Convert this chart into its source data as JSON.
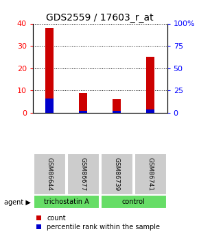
{
  "title": "GDS2559 / 17603_r_at",
  "samples": [
    "GSM86644",
    "GSM86677",
    "GSM86739",
    "GSM86741"
  ],
  "red_values": [
    38,
    9,
    6,
    25
  ],
  "blue_values": [
    6.5,
    0.8,
    0.8,
    1.5
  ],
  "ylim_left": [
    0,
    40
  ],
  "yticks_left": [
    0,
    10,
    20,
    30,
    40
  ],
  "ytick_labels_right": [
    "0",
    "25",
    "50",
    "75",
    "100%"
  ],
  "yticks_right_pos": [
    0,
    10,
    20,
    30,
    40
  ],
  "bar_width": 0.25,
  "red_color": "#cc0000",
  "blue_color": "#0000cc",
  "sample_box_color": "#cccccc",
  "agent_box_color": "#66dd66",
  "title_fontsize": 10,
  "legend_count_label": "count",
  "legend_pct_label": "percentile rank within the sample",
  "agent_label": "agent"
}
